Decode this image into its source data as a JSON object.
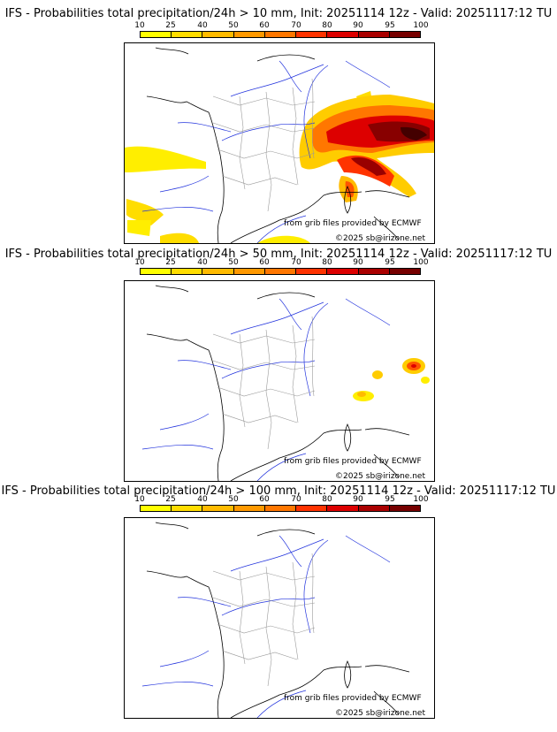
{
  "colorbar": {
    "ticks": [
      "10",
      "25",
      "40",
      "50",
      "60",
      "70",
      "80",
      "90",
      "95",
      "100"
    ],
    "colors": [
      "#ffff00",
      "#ffdd00",
      "#ffbb00",
      "#ff9900",
      "#ff7700",
      "#ff3300",
      "#dd0000",
      "#aa0000",
      "#770000"
    ]
  },
  "panels": [
    {
      "title": "IFS - Probabilities total precipitation/24h > 10 mm, Init: 20251114 12z - Valid: 20251117:12 TU",
      "source": "from grib files provided by ECMWF",
      "copyright": "©2025 sb@irizone.net"
    },
    {
      "title": "IFS - Probabilities total precipitation/24h > 50 mm, Init: 20251114 12z - Valid: 20251117:12 TU",
      "source": "from grib files provided by ECMWF",
      "copyright": "©2025 sb@irizone.net"
    },
    {
      "title": "IFS - Probabilities total precipitation/24h > 100 mm, Init: 20251114 12z - Valid: 20251117:12 TU",
      "source": "from grib files provided by ECMWF",
      "copyright": "©2025 sb@irizone.net"
    }
  ],
  "colors": {
    "coast": "#000000",
    "river": "#2233dd",
    "border": "#9a9a9a"
  }
}
